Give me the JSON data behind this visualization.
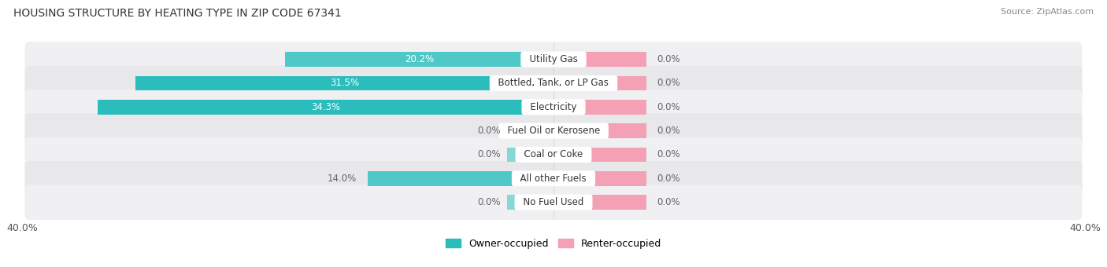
{
  "title": "HOUSING STRUCTURE BY HEATING TYPE IN ZIP CODE 67341",
  "source": "Source: ZipAtlas.com",
  "categories": [
    "Utility Gas",
    "Bottled, Tank, or LP Gas",
    "Electricity",
    "Fuel Oil or Kerosene",
    "Coal or Coke",
    "All other Fuels",
    "No Fuel Used"
  ],
  "owner_values": [
    20.2,
    31.5,
    34.3,
    0.0,
    0.0,
    14.0,
    0.0
  ],
  "renter_values": [
    0.0,
    0.0,
    0.0,
    0.0,
    0.0,
    0.0,
    0.0
  ],
  "owner_color_large": "#2bbcbc",
  "owner_color_medium": "#4fc8c8",
  "owner_color_small": "#85d8d8",
  "renter_color": "#f4a0b5",
  "renter_stub_color": "#f4a0b5",
  "owner_label": "Owner-occupied",
  "renter_label": "Renter-occupied",
  "xlim_left": -40,
  "xlim_right": 40,
  "bar_height": 0.62,
  "bg_color": "#f2f2f2",
  "row_color_odd": "#e8e8e8",
  "row_color_even": "#f2f2f2",
  "stub_size": 3.5,
  "renter_stub_size": 7.0,
  "value_label_color_white": "#ffffff",
  "value_label_color_dark": "#666666",
  "category_label_fontsize": 8.5,
  "value_label_fontsize": 8.5,
  "title_fontsize": 10,
  "source_fontsize": 8
}
